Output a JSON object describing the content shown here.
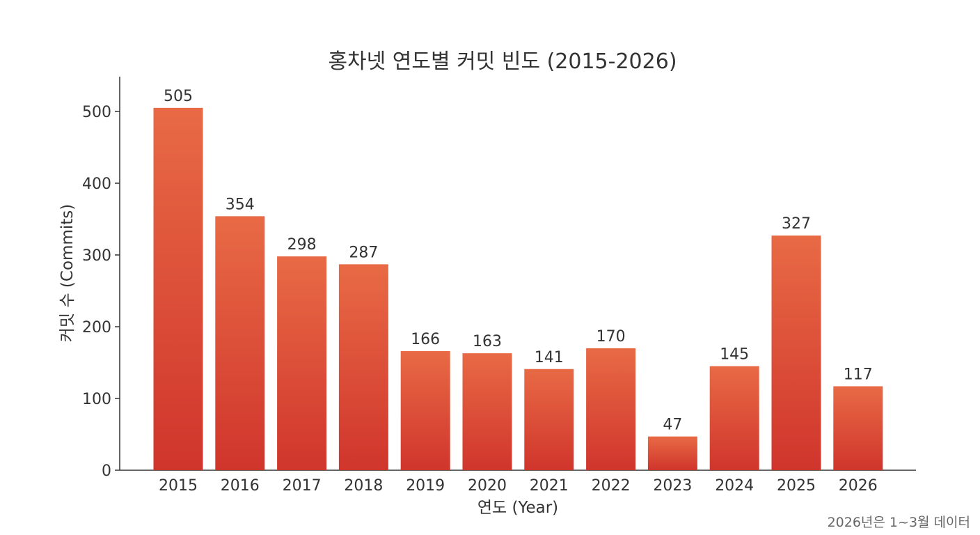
{
  "chart_data": {
    "type": "bar",
    "title": "홍차넷 연도별 커밋 빈도 (2015-2026)",
    "xlabel": "연도 (Year)",
    "ylabel": "커밋 수 (Commits)",
    "categories": [
      "2015",
      "2016",
      "2017",
      "2018",
      "2019",
      "2020",
      "2021",
      "2022",
      "2023",
      "2024",
      "2025",
      "2026"
    ],
    "values": [
      505,
      354,
      298,
      287,
      166,
      163,
      141,
      170,
      47,
      145,
      327,
      117
    ],
    "ylim": [
      0,
      550
    ],
    "yticks": [
      0,
      100,
      200,
      300,
      400,
      500
    ],
    "grid": false,
    "legend": "none",
    "bar_color_top": "#e86a45",
    "bar_color_bottom": "#d0352c",
    "footnote": "2026년은 1~3월 데이터"
  }
}
